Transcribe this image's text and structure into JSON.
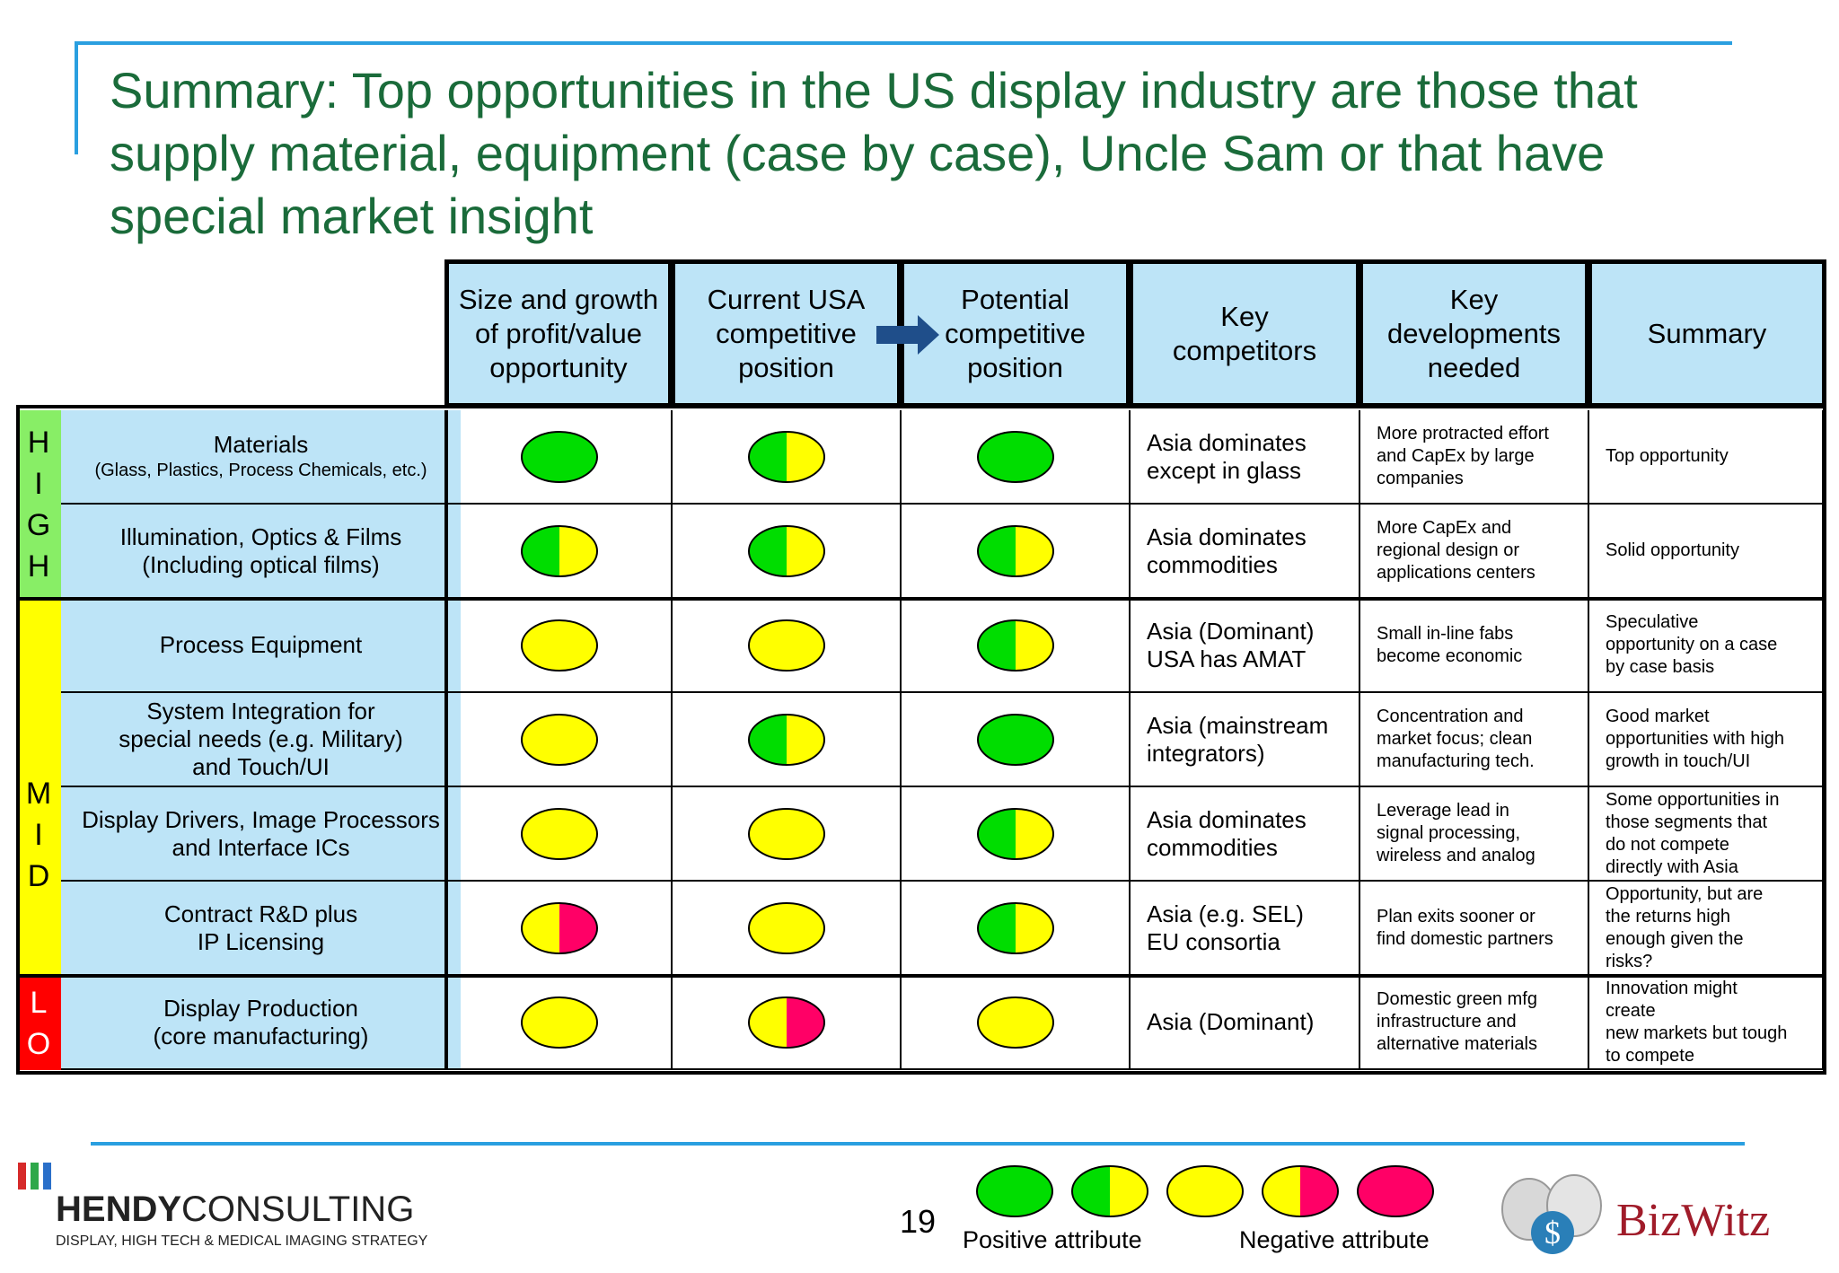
{
  "title": "Summary: Top opportunities in the US display industry are those that supply material, equipment (case by case), Uncle Sam or that have special market insight",
  "colors": {
    "green": "#00dd00",
    "yellow": "#ffff00",
    "red": "#ff0066",
    "header_blue": "#bde4f7",
    "title_green": "#1a6b3a",
    "rule_blue": "#2a9fe0"
  },
  "columns": [
    "Size and growth\nof profit/value\nopportunity",
    "Current USA\ncompetitive\nposition",
    "Potential\ncompetitive\nposition",
    "Key\ncompetitors",
    "Key\ndevelopments\nneeded",
    "Summary"
  ],
  "bands": [
    {
      "letters": [
        "H",
        "I",
        "G",
        "H"
      ],
      "color": "#88ee66",
      "text_color": "#000000"
    },
    {
      "letters": [
        "M",
        "I",
        "D"
      ],
      "color": "#ffff00",
      "text_color": "#000000"
    },
    {
      "letters": [
        "L",
        "O"
      ],
      "color": "#ff0000",
      "text_color": "#ffffff"
    }
  ],
  "rows": [
    {
      "label": "Materials",
      "sublabel": "(Glass, Plastics, Process Chemicals, etc.)",
      "size": "green",
      "current": "green-yellow",
      "potential": "green",
      "competitors": "Asia dominates\nexcept in glass",
      "developments": "More protracted effort\nand CapEx by large\ncompanies",
      "summary": "Top opportunity"
    },
    {
      "label": "Illumination, Optics & Films\n(Including optical films)",
      "sublabel": "",
      "size": "green-yellow",
      "current": "green-yellow",
      "potential": "green-yellow",
      "competitors": "Asia dominates\ncommodities",
      "developments": "More CapEx and\nregional design or\napplications centers",
      "summary": "Solid opportunity"
    },
    {
      "label": "Process Equipment",
      "sublabel": "",
      "size": "yellow",
      "current": "yellow",
      "potential": "green-yellow",
      "competitors": "Asia (Dominant)\nUSA has AMAT",
      "developments": "Small in-line fabs\nbecome economic",
      "summary": "Speculative\nopportunity on a case\nby case basis"
    },
    {
      "label": "System Integration for\nspecial needs (e.g. Military)\nand Touch/UI",
      "sublabel": "",
      "size": "yellow",
      "current": "green-yellow",
      "potential": "green",
      "competitors": "Asia (mainstream\nintegrators)",
      "developments": "Concentration and\nmarket focus; clean\nmanufacturing tech.",
      "summary": "Good market\nopportunities with high\ngrowth in touch/UI"
    },
    {
      "label": "Display Drivers, Image Processors\nand Interface ICs",
      "sublabel": "",
      "size": "yellow",
      "current": "yellow",
      "potential": "green-yellow",
      "competitors": "Asia dominates\ncommodities",
      "developments": "Leverage lead in\nsignal processing,\nwireless and analog",
      "summary": "Some opportunities in\nthose segments that\ndo not compete\ndirectly with Asia"
    },
    {
      "label": "Contract R&D plus\nIP Licensing",
      "sublabel": "",
      "size": "yellow-red",
      "current": "yellow",
      "potential": "green-yellow",
      "competitors": "Asia (e.g. SEL)\nEU consortia",
      "developments": "Plan exits sooner or\nfind domestic partners",
      "summary": "Opportunity, but are\nthe returns high\nenough given the\nrisks?"
    },
    {
      "label": "Display Production\n(core manufacturing)",
      "sublabel": "",
      "size": "yellow",
      "current": "yellow-red",
      "potential": "yellow",
      "competitors": "Asia (Dominant)",
      "developments": "Domestic green mfg\ninfrastructure and\nalternative materials",
      "summary": "Innovation might\ncreate\nnew markets but tough\nto compete"
    }
  ],
  "legend": {
    "items": [
      "green",
      "green-yellow",
      "yellow",
      "yellow-red",
      "red"
    ],
    "positive_label": "Positive attribute",
    "negative_label": "Negative attribute"
  },
  "footer": {
    "page_number": "19",
    "company_name_bold": "HENDY",
    "company_name_rest": "CONSULTING",
    "company_tagline": "DISPLAY, HIGH TECH & MEDICAL IMAGING STRATEGY",
    "partner": "BizWitz"
  }
}
